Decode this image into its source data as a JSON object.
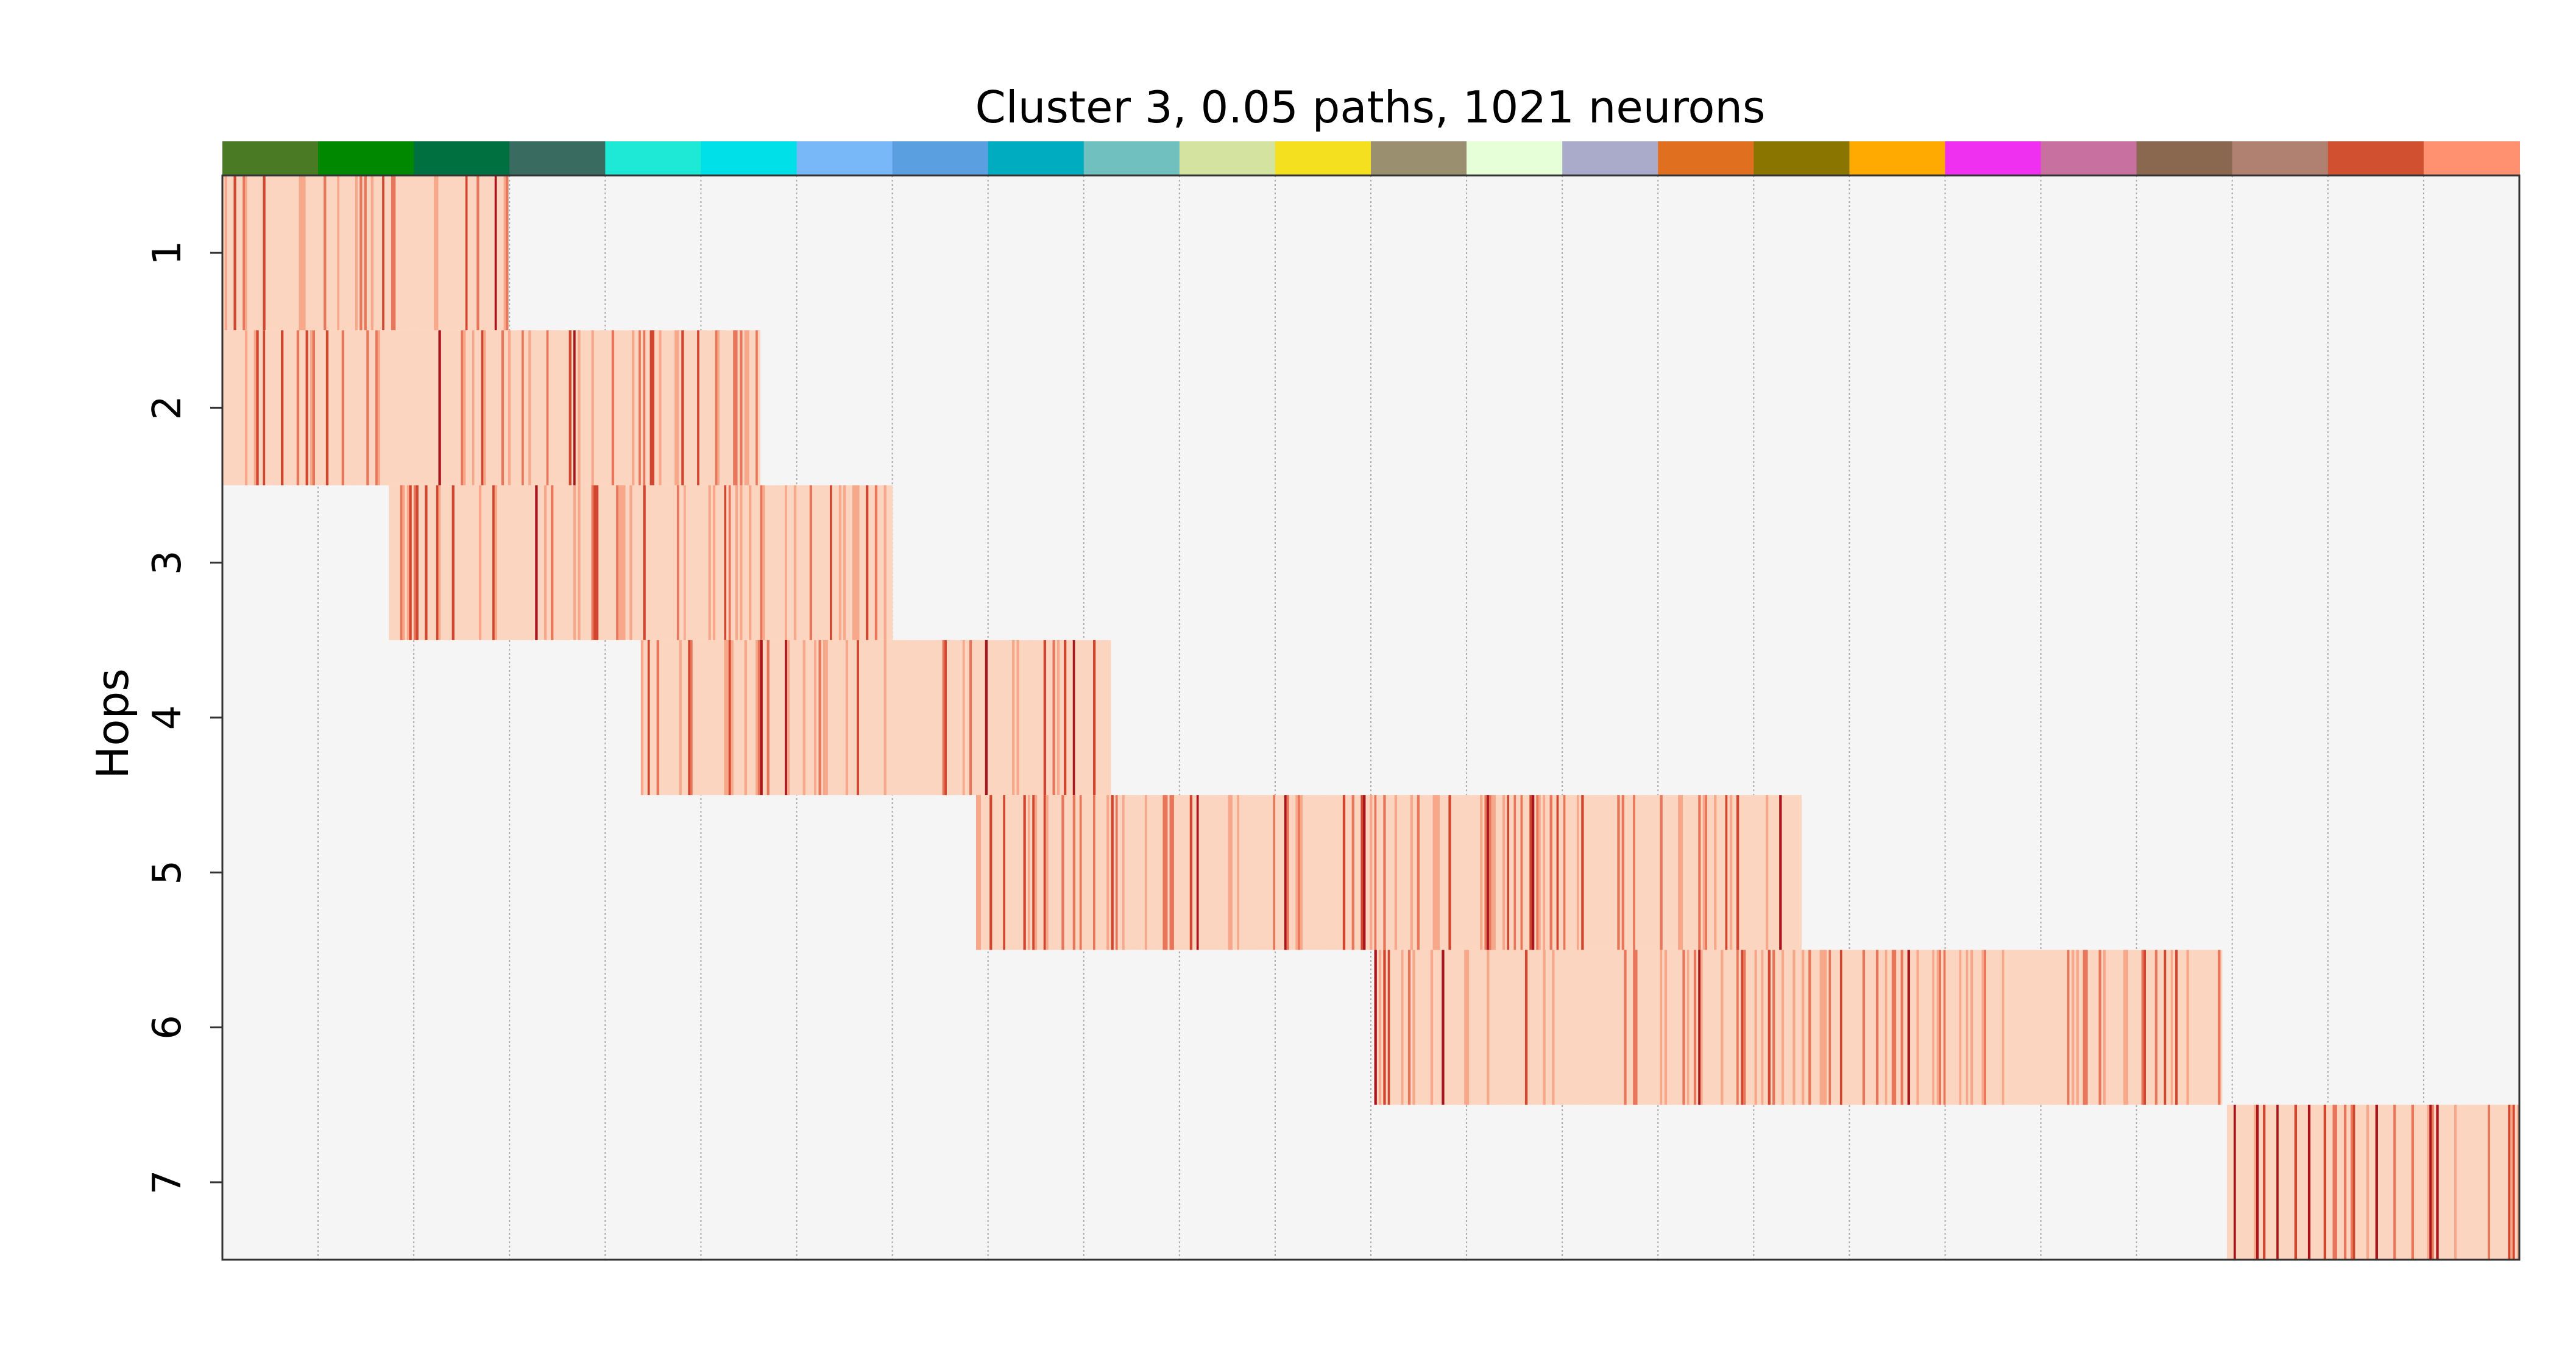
{
  "chart_data": {
    "type": "heatmap",
    "title": "Cluster 3, 0.05 paths, 1021 neurons",
    "xlabel": "",
    "ylabel": "Hops",
    "y_categories": [
      "1",
      "2",
      "3",
      "4",
      "5",
      "6",
      "7"
    ],
    "n_columns": 1021,
    "colormap": "Reds",
    "background_color": "#f5f5f5",
    "cell_colors": [
      "#fcd5c1",
      "#f7a88a",
      "#e8765a",
      "#d0462f",
      "#a8151c"
    ],
    "x_ticks": false,
    "group_bar_colors": [
      "#4a7a23",
      "#008800",
      "#007040",
      "#3a6b60",
      "#1ee8d6",
      "#00e0e8",
      "#78b8f8",
      "#5aa0e0",
      "#00acc0",
      "#70c0c0",
      "#d5e3a0",
      "#f5e020",
      "#9a9070",
      "#e6ffd8",
      "#aaaaca",
      "#e07020",
      "#8a7500",
      "#ffaa00",
      "#f030f0",
      "#c870a0",
      "#8a6850",
      "#b08070",
      "#d05030",
      "#ff9070"
    ],
    "bands": [
      {
        "hop": "1",
        "start": 0,
        "end": 126
      },
      {
        "hop": "2",
        "start": 0,
        "end": 238
      },
      {
        "hop": "3",
        "start": 74,
        "end": 297
      },
      {
        "hop": "4",
        "start": 186,
        "end": 394
      },
      {
        "hop": "5",
        "start": 335,
        "end": 701
      },
      {
        "hop": "6",
        "start": 512,
        "end": 888
      },
      {
        "hop": "7",
        "start": 891,
        "end": 1020
      }
    ]
  }
}
